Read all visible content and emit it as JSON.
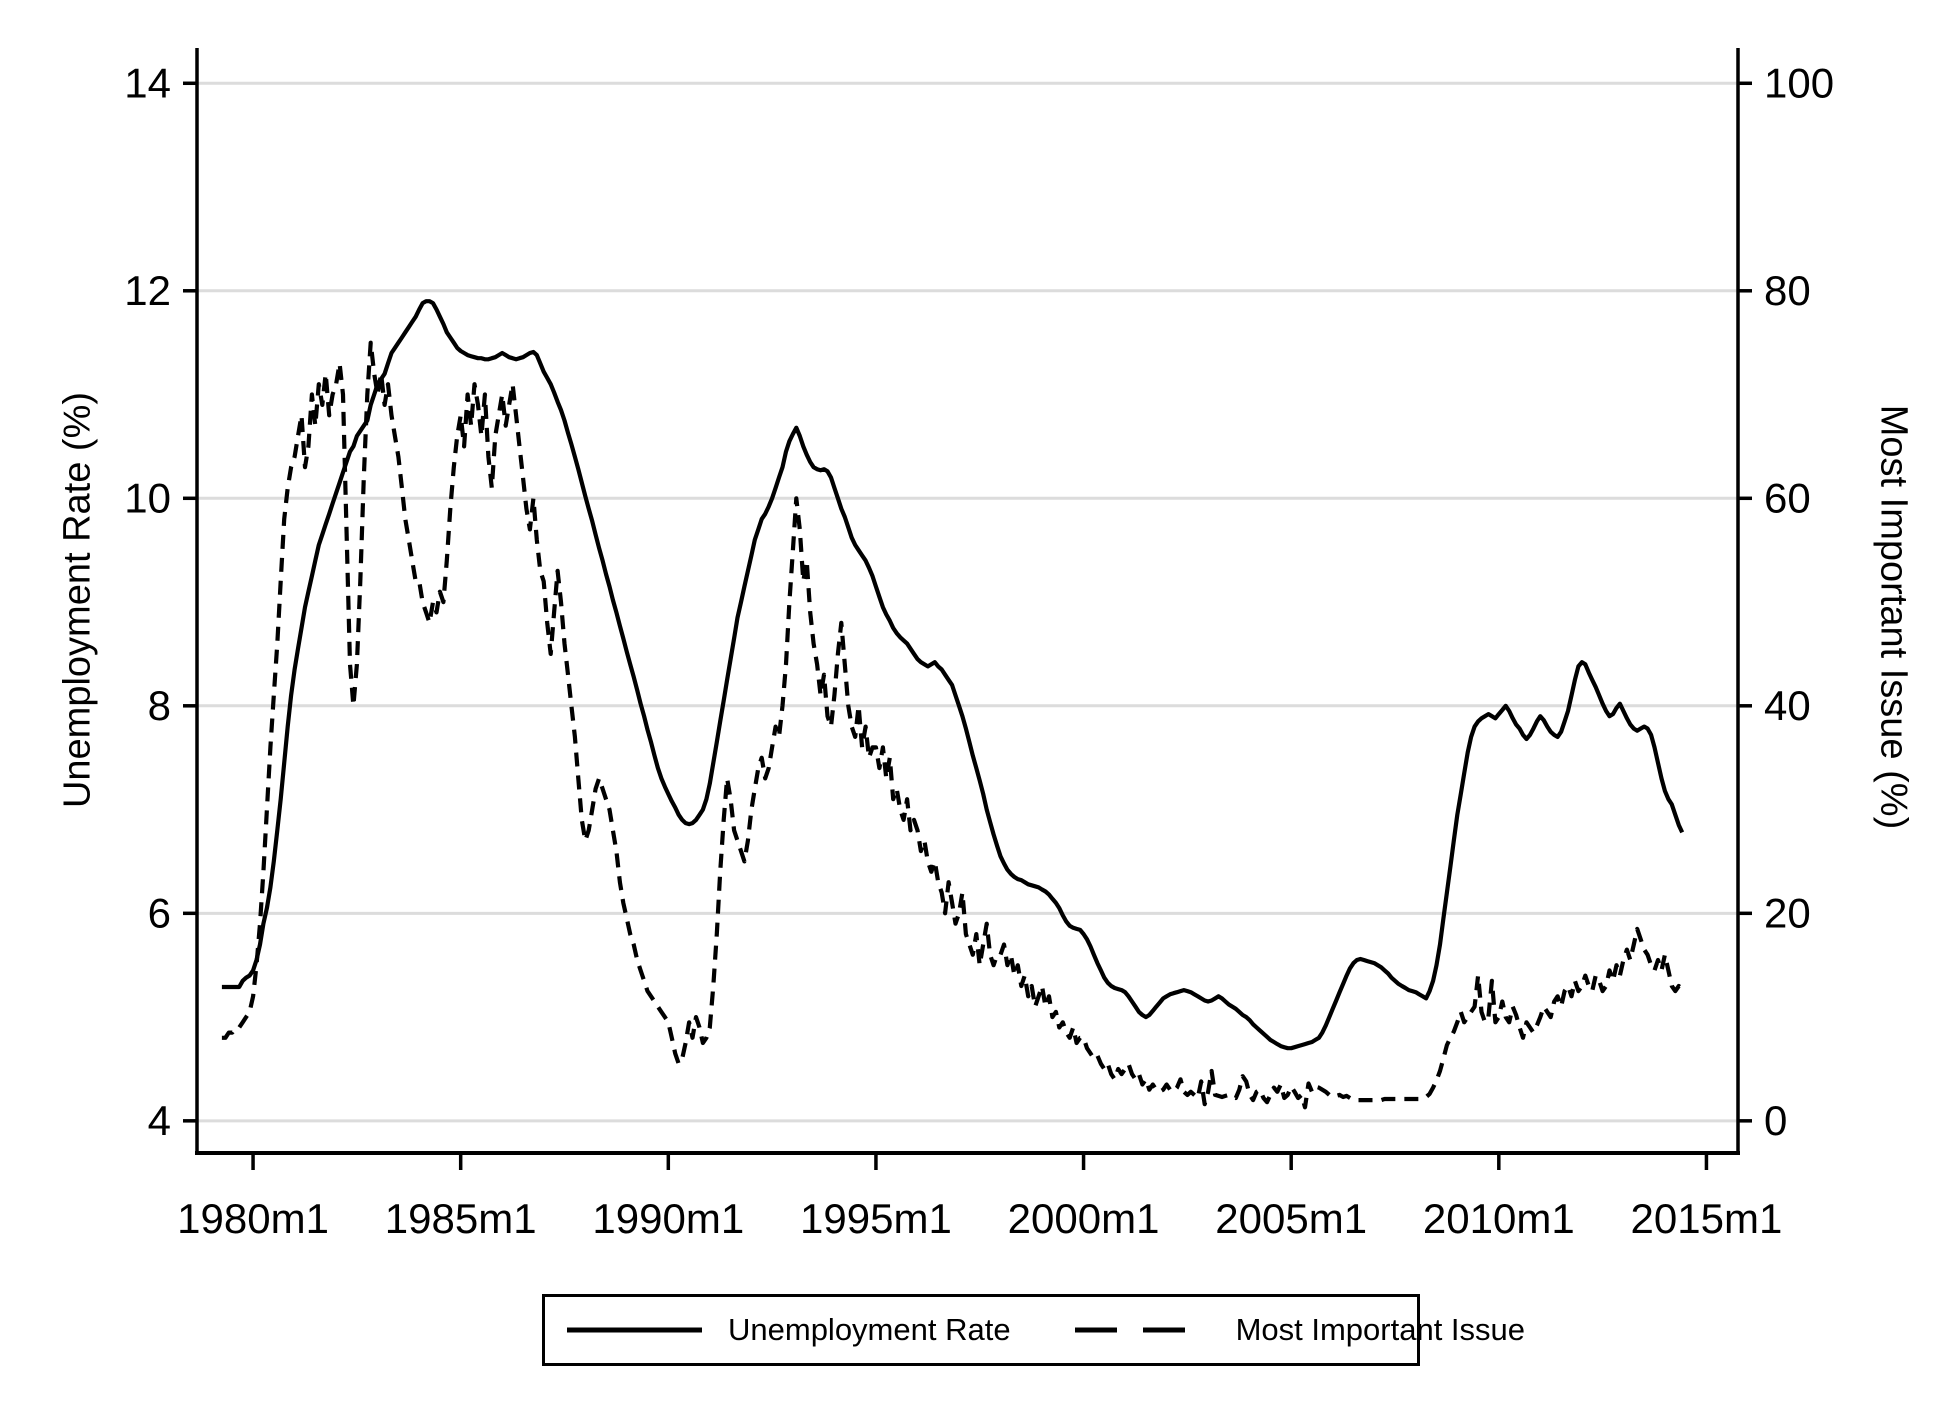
{
  "chart_data": {
    "type": "line",
    "title": "",
    "background": "#ffffff",
    "colors": {
      "line": "#000000",
      "grid": "#dcdcdc",
      "frame": "#000000"
    },
    "x_axis": {
      "tick_labels": [
        "1980m1",
        "1985m1",
        "1990m1",
        "1995m1",
        "2000m1",
        "2005m1",
        "2010m1",
        "2015m1"
      ],
      "tick_years": [
        1980,
        1985,
        1990,
        1995,
        2000,
        2005,
        2010,
        2015
      ],
      "range_years": [
        1978.65,
        2015.76
      ],
      "grid": false
    },
    "left_axis": {
      "label": "Unemployment Rate (%)",
      "ticks": [
        4,
        6,
        8,
        10,
        12,
        14
      ],
      "range": [
        3.69,
        14.34
      ],
      "grid": true
    },
    "right_axis": {
      "label": "Most Important Issue (%)",
      "ticks": [
        0,
        20,
        40,
        60,
        80,
        100
      ],
      "range": [
        -3.1,
        103.4
      ]
    },
    "legend": {
      "items": [
        {
          "label": "Unemployment Rate",
          "style": "solid"
        },
        {
          "label": "Most Important Issue",
          "style": "dashed"
        }
      ]
    },
    "series": [
      {
        "name": "Unemployment Rate",
        "axis": "left",
        "line_style": "solid",
        "start_year": 1979,
        "start_month": 4,
        "values": [
          5.29,
          5.29,
          5.29,
          5.29,
          5.29,
          5.29,
          5.35,
          5.38,
          5.4,
          5.45,
          5.55,
          5.7,
          5.9,
          6.05,
          6.25,
          6.5,
          6.8,
          7.1,
          7.45,
          7.8,
          8.1,
          8.35,
          8.55,
          8.75,
          8.95,
          9.1,
          9.25,
          9.4,
          9.55,
          9.65,
          9.75,
          9.85,
          9.95,
          10.05,
          10.15,
          10.25,
          10.35,
          10.45,
          10.5,
          10.6,
          10.65,
          10.7,
          10.75,
          10.9,
          11.0,
          11.1,
          11.15,
          11.2,
          11.3,
          11.4,
          11.45,
          11.5,
          11.55,
          11.6,
          11.65,
          11.7,
          11.75,
          11.82,
          11.88,
          11.9,
          11.9,
          11.88,
          11.82,
          11.75,
          11.68,
          11.6,
          11.55,
          11.5,
          11.45,
          11.42,
          11.4,
          11.38,
          11.37,
          11.36,
          11.35,
          11.35,
          11.34,
          11.34,
          11.35,
          11.36,
          11.38,
          11.4,
          11.38,
          11.36,
          11.35,
          11.34,
          11.35,
          11.36,
          11.38,
          11.4,
          11.41,
          11.38,
          11.3,
          11.22,
          11.16,
          11.1,
          11.02,
          10.93,
          10.85,
          10.75,
          10.63,
          10.52,
          10.4,
          10.28,
          10.15,
          10.02,
          9.9,
          9.78,
          9.65,
          9.52,
          9.4,
          9.27,
          9.15,
          9.02,
          8.9,
          8.77,
          8.65,
          8.52,
          8.4,
          8.28,
          8.15,
          8.02,
          7.9,
          7.77,
          7.65,
          7.52,
          7.4,
          7.3,
          7.22,
          7.15,
          7.08,
          7.02,
          6.95,
          6.9,
          6.87,
          6.86,
          6.87,
          6.9,
          6.95,
          7.0,
          7.1,
          7.25,
          7.45,
          7.65,
          7.85,
          8.05,
          8.25,
          8.45,
          8.65,
          8.85,
          9.0,
          9.15,
          9.3,
          9.45,
          9.6,
          9.7,
          9.8,
          9.85,
          9.92,
          10.0,
          10.1,
          10.2,
          10.3,
          10.45,
          10.55,
          10.62,
          10.68,
          10.6,
          10.5,
          10.42,
          10.35,
          10.3,
          10.28,
          10.27,
          10.28,
          10.26,
          10.2,
          10.1,
          10.0,
          9.9,
          9.82,
          9.72,
          9.62,
          9.55,
          9.5,
          9.45,
          9.4,
          9.33,
          9.25,
          9.15,
          9.05,
          8.95,
          8.88,
          8.82,
          8.75,
          8.7,
          8.66,
          8.63,
          8.6,
          8.55,
          8.5,
          8.45,
          8.42,
          8.4,
          8.38,
          8.4,
          8.42,
          8.38,
          8.35,
          8.3,
          8.25,
          8.2,
          8.1,
          8.0,
          7.9,
          7.78,
          7.65,
          7.52,
          7.4,
          7.28,
          7.15,
          7.0,
          6.88,
          6.76,
          6.65,
          6.55,
          6.48,
          6.42,
          6.38,
          6.35,
          6.33,
          6.32,
          6.3,
          6.28,
          6.27,
          6.26,
          6.25,
          6.23,
          6.21,
          6.18,
          6.14,
          6.1,
          6.05,
          5.98,
          5.92,
          5.88,
          5.86,
          5.85,
          5.84,
          5.8,
          5.75,
          5.68,
          5.6,
          5.52,
          5.45,
          5.38,
          5.33,
          5.3,
          5.28,
          5.27,
          5.26,
          5.24,
          5.2,
          5.15,
          5.1,
          5.05,
          5.02,
          5.0,
          5.02,
          5.06,
          5.1,
          5.14,
          5.18,
          5.2,
          5.22,
          5.23,
          5.24,
          5.25,
          5.26,
          5.25,
          5.24,
          5.22,
          5.2,
          5.18,
          5.16,
          5.15,
          5.16,
          5.18,
          5.2,
          5.18,
          5.15,
          5.12,
          5.1,
          5.08,
          5.05,
          5.02,
          5.0,
          4.97,
          4.93,
          4.9,
          4.87,
          4.84,
          4.81,
          4.78,
          4.76,
          4.74,
          4.72,
          4.71,
          4.7,
          4.7,
          4.71,
          4.72,
          4.73,
          4.74,
          4.75,
          4.76,
          4.78,
          4.8,
          4.85,
          4.92,
          5.0,
          5.08,
          5.16,
          5.24,
          5.32,
          5.4,
          5.47,
          5.52,
          5.55,
          5.56,
          5.55,
          5.54,
          5.53,
          5.52,
          5.5,
          5.48,
          5.45,
          5.42,
          5.38,
          5.35,
          5.32,
          5.3,
          5.28,
          5.26,
          5.25,
          5.24,
          5.22,
          5.2,
          5.18,
          5.25,
          5.35,
          5.5,
          5.7,
          5.95,
          6.2,
          6.45,
          6.7,
          6.95,
          7.15,
          7.35,
          7.55,
          7.7,
          7.8,
          7.85,
          7.88,
          7.9,
          7.92,
          7.9,
          7.88,
          7.92,
          7.96,
          8.0,
          7.95,
          7.88,
          7.82,
          7.78,
          7.72,
          7.68,
          7.72,
          7.78,
          7.85,
          7.9,
          7.86,
          7.8,
          7.75,
          7.72,
          7.7,
          7.75,
          7.85,
          7.95,
          8.1,
          8.25,
          8.38,
          8.42,
          8.4,
          8.32,
          8.25,
          8.18,
          8.1,
          8.02,
          7.95,
          7.9,
          7.92,
          7.98,
          8.02,
          7.95,
          7.88,
          7.82,
          7.78,
          7.76,
          7.78,
          7.8,
          7.78,
          7.72,
          7.6,
          7.45,
          7.3,
          7.18,
          7.1,
          7.05,
          6.95,
          6.85,
          6.78
        ]
      },
      {
        "name": "Most Important Issue",
        "axis": "right",
        "line_style": "dashed",
        "start_year": 1979,
        "start_month": 4,
        "values": [
          8.0,
          8.0,
          8.5,
          8.5,
          9.0,
          9.0,
          9.5,
          10.0,
          10.5,
          12,
          15,
          19,
          24,
          30,
          36,
          41,
          46,
          52,
          58,
          61,
          63,
          64,
          66,
          68,
          63,
          65,
          70,
          67,
          71,
          69,
          72,
          68,
          70,
          71,
          73,
          70,
          57,
          44,
          40,
          44,
          52,
          62,
          70,
          75,
          72,
          70,
          72,
          69,
          71,
          68,
          66,
          64,
          61,
          58,
          56,
          54,
          52,
          52,
          50,
          49,
          48,
          50,
          49,
          51,
          50,
          54,
          59,
          63,
          66,
          68,
          65,
          70,
          67,
          71,
          69,
          66,
          70,
          64,
          61,
          66,
          68,
          70,
          67,
          69,
          71,
          68,
          65,
          62,
          59,
          57,
          60,
          56,
          53,
          52,
          48,
          45,
          49,
          53,
          50,
          46,
          43,
          40,
          37,
          33,
          29,
          27,
          28,
          30,
          32,
          33,
          32,
          31,
          30,
          28,
          26,
          23,
          21,
          19.5,
          18,
          17,
          15.5,
          14.5,
          13.5,
          12.5,
          12,
          11.5,
          11,
          10.5,
          10,
          9.5,
          8,
          6.5,
          5.5,
          6,
          7.5,
          9.5,
          8,
          10,
          9,
          7.5,
          8,
          9,
          13,
          18,
          24,
          29,
          33,
          31,
          28,
          27,
          26,
          25,
          27,
          30,
          32,
          34,
          35,
          33,
          34,
          36,
          38,
          37,
          40,
          44,
          50,
          55,
          60,
          57,
          52,
          54,
          49,
          46,
          44,
          41,
          43,
          39,
          38,
          41,
          45,
          48,
          44,
          40,
          38,
          37,
          40,
          36,
          38,
          35,
          36,
          36,
          34,
          36,
          33,
          35,
          31,
          32,
          30,
          29,
          31,
          28,
          29,
          28,
          26,
          27,
          25,
          24,
          25,
          23,
          22,
          20,
          23,
          21,
          19,
          20,
          22,
          18,
          17,
          16,
          18,
          15,
          17,
          19,
          16,
          15,
          16,
          16,
          17,
          15,
          16,
          14,
          15,
          13,
          14,
          12,
          13,
          11,
          12,
          13,
          11,
          12,
          10,
          10.5,
          9,
          9.5,
          8.5,
          8,
          9,
          7.5,
          8,
          8,
          7,
          6.5,
          6,
          6.3,
          5.5,
          5,
          5.5,
          4.5,
          4,
          5,
          4.5,
          5,
          5.5,
          4.5,
          4,
          4.5,
          3.5,
          4,
          3,
          3.5,
          3,
          2.8,
          3,
          3.5,
          3,
          2.8,
          3.2,
          4,
          2.8,
          2.5,
          2.8,
          2.5,
          2.2,
          3.8,
          1.6,
          2.8,
          4.8,
          2.5,
          2.4,
          2.3,
          2.4,
          2.5,
          2.3,
          2.2,
          3.0,
          4.3,
          3.8,
          2.5,
          2.0,
          2.8,
          3.0,
          2.2,
          1.8,
          2.5,
          3.2,
          2.8,
          3.5,
          2.2,
          2.5,
          3.3,
          2.8,
          2.2,
          2.5,
          1.3,
          3.6,
          2.8,
          3.3,
          3.2,
          3.0,
          2.8,
          2.5,
          2.6,
          2.4,
          2.5,
          2.3,
          2.4,
          2.2,
          2.0,
          2.0,
          2.0,
          2.0,
          2.0,
          2.0,
          2.0,
          2.0,
          2.0,
          2.1,
          2.1,
          2.1,
          2.1,
          2.1,
          2.1,
          2.1,
          2.1,
          2.1,
          2.1,
          2.1,
          2.2,
          2.3,
          2.6,
          3.2,
          3.9,
          4.8,
          6.0,
          7.3,
          8.0,
          8.6,
          9.5,
          10.5,
          9.5,
          10,
          10.5,
          11,
          14,
          10.5,
          9.5,
          10,
          13.5,
          9.5,
          10,
          11.5,
          10,
          9.5,
          11,
          10.2,
          9,
          8,
          9.5,
          9,
          8.5,
          9.2,
          10,
          11,
          10.5,
          10,
          11.5,
          12,
          11,
          12.5,
          13,
          12,
          13.5,
          12.5,
          13,
          14,
          13,
          12.5,
          14,
          13.5,
          12.5,
          13,
          14.5,
          13.5,
          15,
          14,
          15.5,
          16.5,
          15.5,
          17,
          18.5,
          17.5,
          16.5,
          16,
          15,
          14.5,
          15.5,
          14.5,
          16,
          14.5,
          13,
          12.5,
          13,
          12.7
        ]
      }
    ]
  }
}
